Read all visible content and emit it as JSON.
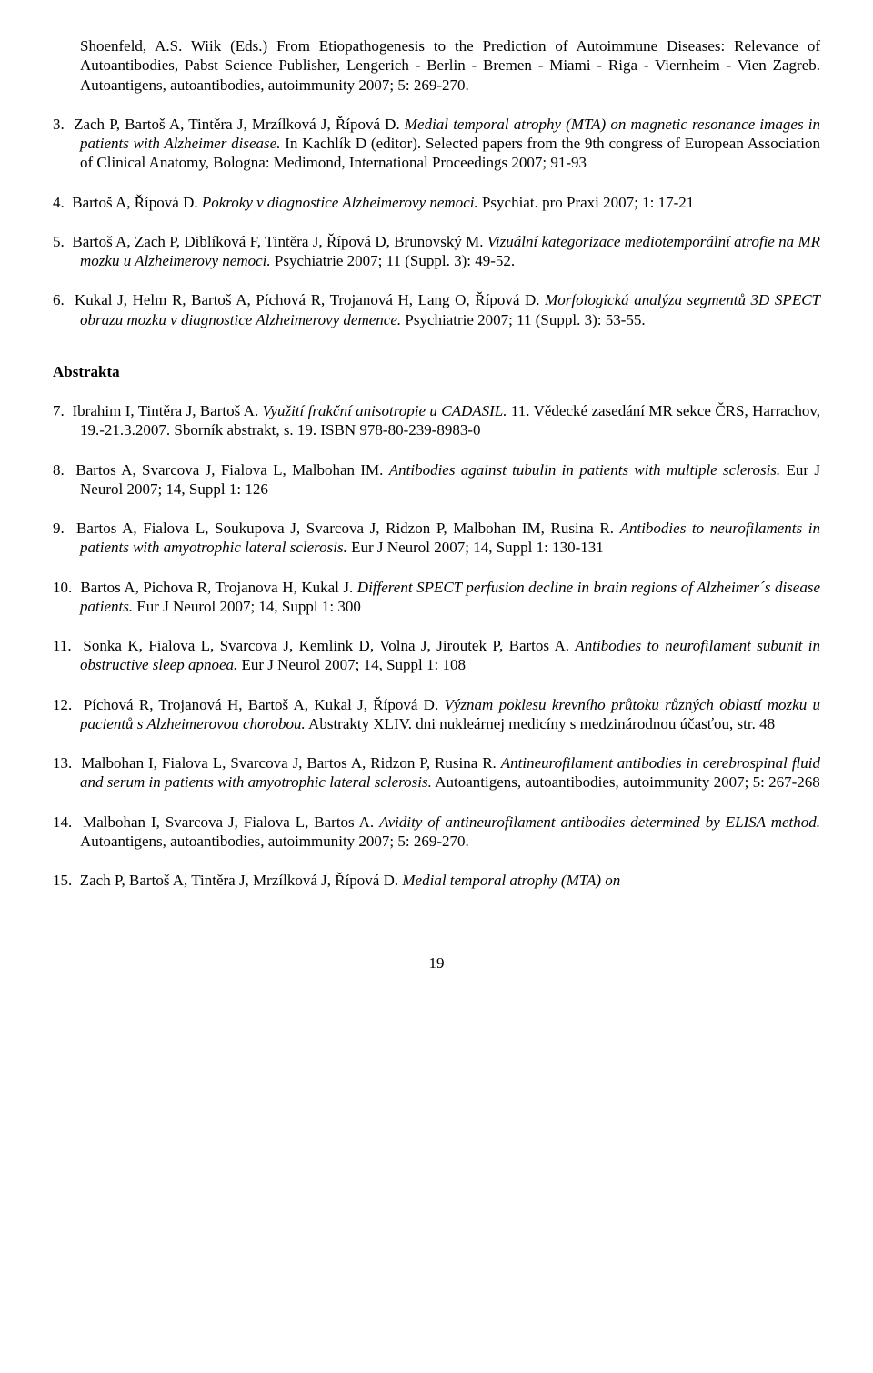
{
  "continuation_html": "Shoenfeld, A.S. Wiik (Eds.) From Etiopathogenesis to the Prediction of Autoimmune Diseases: Relevance of Autoantibodies, Pabst Science Publisher, Lengerich - Berlin - Bremen - Miami - Riga - Viernheim - Vien Zagreb. Autoantigens, autoantibodies, autoimmunity 2007; 5: 269-270.",
  "refs_top": [
    {
      "n": "3.",
      "html": "Zach P, Bartoš A, Tintěra J, Mrzílková J, Řípová D. <span class=\"italic\">Medial temporal atrophy (MTA) on magnetic resonance images in patients with Alzheimer disease.</span> In Kachlík D (editor). Selected papers from the 9th congress of European Association of Clinical Anatomy, Bologna: Medimond, International Proceedings 2007; 91-93"
    },
    {
      "n": "4.",
      "html": "Bartoš A, Řípová D. <span class=\"italic\">Pokroky v diagnostice Alzheimerovy nemoci.</span> Psychiat. pro Praxi 2007; 1: 17-21"
    },
    {
      "n": "5.",
      "html": "Bartoš A, Zach P, Diblíková F, Tintěra J, Řípová D, Brunovský M. <span class=\"italic\">Vizuální kategorizace mediotemporální atrofie na MR mozku u Alzheimerovy nemoci.</span> Psychiatrie 2007; 11 (Suppl. 3): 49-52."
    },
    {
      "n": "6.",
      "html": "Kukal J, Helm R, Bartoš A, Píchová R, Trojanová H, Lang O, Řípová D. <span class=\"italic\">Morfologická analýza segmentů 3D SPECT obrazu mozku v diagnostice Alzheimerovy demence.</span> Psychiatrie 2007; 11 (Suppl. 3): 53-55."
    }
  ],
  "section_heading": "Abstrakta",
  "refs_bottom": [
    {
      "n": "7.",
      "html": "Ibrahim I, Tintěra J, Bartoš A. <span class=\"italic\">Využití frakční anisotropie u CADASIL.</span> 11. Vědecké zasedání MR sekce ČRS, Harrachov, 19.-21.3.2007. Sborník abstrakt, s. 19. ISBN 978-80-239-8983-0"
    },
    {
      "n": "8.",
      "html": "Bartos A, Svarcova J, Fialova L, Malbohan IM. <span class=\"italic\">Antibodies against tubulin in patients with multiple sclerosis.</span> Eur J Neurol 2007; 14, Suppl 1: 126"
    },
    {
      "n": "9.",
      "html": "Bartos A, Fialova L, Soukupova J, Svarcova J, Ridzon P, Malbohan IM, Rusina R. <span class=\"italic\">Antibodies to neurofilaments in patients with amyotrophic lateral sclerosis.</span> Eur J Neurol 2007; 14, Suppl 1: 130-131"
    },
    {
      "n": "10.",
      "html": "Bartos A, Pichova R, Trojanova H, Kukal J. <span class=\"italic\">Different SPECT perfusion decline in brain regions of Alzheimer´s disease patients.</span> Eur J Neurol 2007; 14, Suppl 1: 300"
    },
    {
      "n": "11.",
      "html": "Sonka K, Fialova L, Svarcova J, Kemlink D, Volna J, Jiroutek P, Bartos A. <span class=\"italic\">Antibodies to neurofilament subunit in obstructive sleep apnoea.</span> Eur J Neurol 2007; 14, Suppl 1: 108"
    },
    {
      "n": "12.",
      "html": "Píchová R, Trojanová H, Bartoš A, Kukal J, Řípová D. <span class=\"italic\">Význam poklesu krevního průtoku různých oblastí mozku u pacientů s Alzheimerovou chorobou.</span> Abstrakty XLIV. dni nukleárnej medicíny s medzinárodnou účasťou, str. 48"
    },
    {
      "n": "13.",
      "html": "Malbohan I, Fialova L, Svarcova J, Bartos A, Ridzon P, Rusina R. <span class=\"italic\">Antineurofilament antibodies in cerebrospinal fluid and serum in patients with amyotrophic lateral sclerosis.</span> Autoantigens, autoantibodies, autoimmunity 2007; 5: 267-268"
    },
    {
      "n": "14.",
      "html": "Malbohan I, Svarcova J, Fialova L, Bartos A. <span class=\"italic\">Avidity of antineurofilament antibodies determined by ELISA method.</span> Autoantigens, autoantibodies, autoimmunity 2007; 5: 269-270."
    },
    {
      "n": "15.",
      "html": "Zach P, Bartoš A, Tintěra J, Mrzílková J, Řípová D. <span class=\"italic\">Medial temporal atrophy (MTA) on</span>"
    }
  ],
  "page_number": "19",
  "style": {
    "font_family": "Times New Roman",
    "font_size_pt": 12,
    "text_color": "#000000",
    "background_color": "#ffffff"
  }
}
